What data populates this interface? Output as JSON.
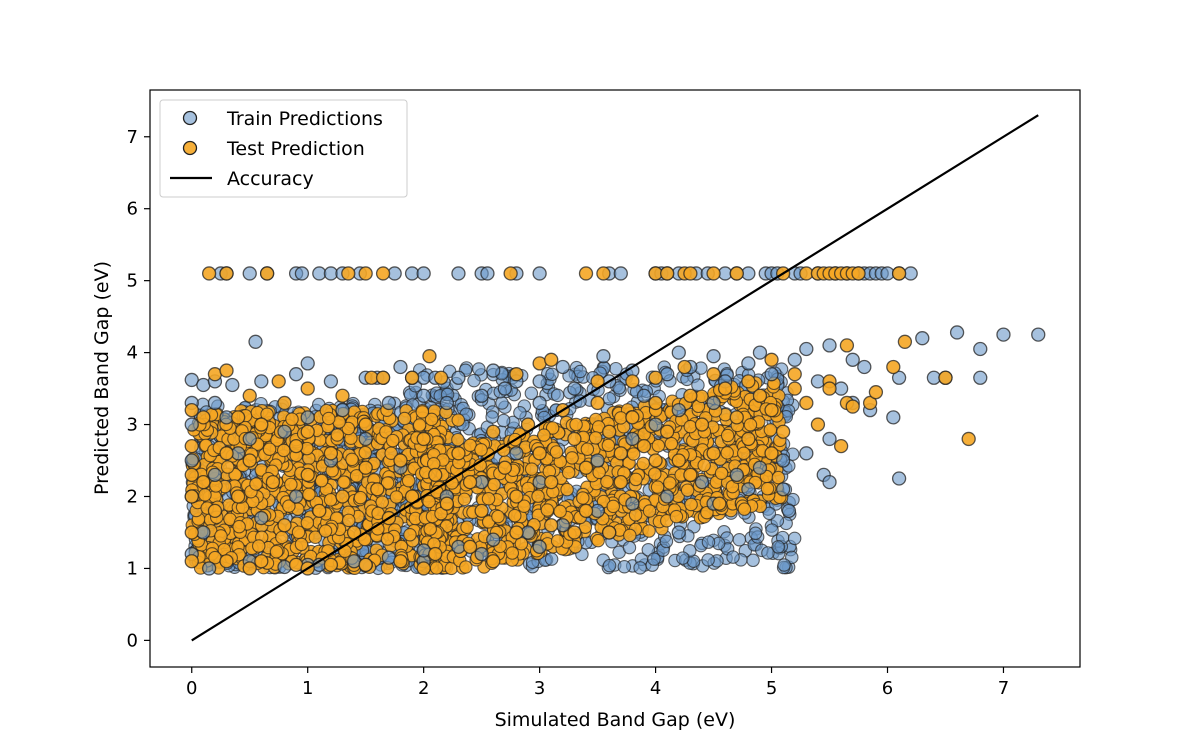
{
  "chart_data": {
    "type": "scatter",
    "title": "",
    "xlabel": "Simulated Band Gap (eV)",
    "ylabel": "Predicted Band Gap (eV)",
    "xlim": [
      -0.36,
      7.66
    ],
    "ylim": [
      -0.37,
      7.65
    ],
    "x_ticks": [
      0,
      1,
      2,
      3,
      4,
      5,
      6,
      7
    ],
    "y_ticks": [
      0,
      1,
      2,
      3,
      4,
      5,
      6,
      7
    ],
    "grid": false,
    "legend": "upper-left",
    "colors": {
      "train": "#6b98c8",
      "test": "#f5a623",
      "edge": "#222222",
      "line": "#000000"
    },
    "series": [
      {
        "name": "Train Predictions",
        "kind": "scatter",
        "points": [
          [
            0.0,
            3.62
          ],
          [
            0.1,
            3.55
          ],
          [
            0.2,
            3.6
          ],
          [
            0.35,
            3.55
          ],
          [
            0.55,
            4.15
          ],
          [
            0.6,
            3.6
          ],
          [
            0.9,
            3.7
          ],
          [
            1.0,
            3.85
          ],
          [
            1.2,
            3.6
          ],
          [
            1.5,
            3.65
          ],
          [
            1.6,
            3.65
          ],
          [
            1.65,
            3.65
          ],
          [
            1.8,
            3.8
          ],
          [
            1.9,
            3.65
          ],
          [
            2.0,
            3.65
          ],
          [
            2.1,
            3.65
          ],
          [
            2.3,
            3.65
          ],
          [
            2.6,
            3.75
          ],
          [
            2.8,
            3.6
          ],
          [
            3.0,
            3.6
          ],
          [
            3.2,
            3.8
          ],
          [
            3.55,
            3.95
          ],
          [
            3.8,
            3.75
          ],
          [
            4.2,
            4.0
          ],
          [
            4.5,
            3.95
          ],
          [
            4.9,
            4.0
          ],
          [
            5.3,
            4.05
          ],
          [
            5.5,
            4.1
          ],
          [
            5.7,
            3.9
          ],
          [
            5.8,
            3.8
          ],
          [
            6.05,
            3.1
          ],
          [
            6.1,
            2.25
          ],
          [
            6.1,
            3.65
          ],
          [
            6.3,
            4.2
          ],
          [
            6.4,
            3.65
          ],
          [
            6.5,
            3.65
          ],
          [
            6.6,
            4.28
          ],
          [
            6.8,
            3.65
          ],
          [
            6.8,
            4.05
          ],
          [
            7.0,
            4.25
          ],
          [
            7.3,
            4.25
          ],
          [
            5.45,
            2.3
          ],
          [
            5.5,
            2.2
          ],
          [
            5.15,
            1.8
          ],
          [
            5.1,
            2.1
          ],
          [
            4.8,
            2.1
          ],
          [
            4.5,
            1.9
          ],
          [
            4.2,
            1.5
          ],
          [
            3.6,
            1.5
          ],
          [
            3.0,
            1.3
          ],
          [
            2.5,
            1.2
          ],
          [
            2.0,
            1.1
          ],
          [
            1.5,
            1.05
          ],
          [
            1.0,
            1.05
          ],
          [
            0.5,
            1.1
          ],
          [
            0.0,
            1.2
          ],
          [
            0.0,
            2.0
          ],
          [
            0.0,
            2.5
          ],
          [
            0.0,
            3.0
          ],
          [
            0.0,
            3.3
          ],
          [
            0.1,
            1.5
          ],
          [
            0.2,
            2.3
          ],
          [
            0.3,
            3.1
          ],
          [
            0.5,
            2.8
          ],
          [
            0.8,
            2.9
          ],
          [
            1.0,
            3.1
          ],
          [
            1.3,
            3.2
          ],
          [
            1.7,
            3.3
          ],
          [
            2.0,
            3.4
          ],
          [
            2.2,
            3.3
          ],
          [
            2.5,
            3.4
          ],
          [
            2.7,
            3.5
          ],
          [
            3.0,
            3.3
          ],
          [
            3.3,
            3.5
          ],
          [
            3.6,
            3.6
          ],
          [
            3.9,
            3.4
          ],
          [
            4.1,
            3.7
          ],
          [
            4.3,
            3.8
          ],
          [
            4.6,
            3.6
          ],
          [
            4.8,
            3.85
          ],
          [
            5.0,
            3.7
          ],
          [
            5.2,
            3.9
          ],
          [
            5.4,
            3.6
          ],
          [
            5.6,
            3.5
          ],
          [
            5.7,
            3.3
          ],
          [
            5.85,
            3.2
          ],
          [
            5.5,
            2.8
          ],
          [
            5.3,
            2.6
          ],
          [
            5.1,
            2.5
          ],
          [
            4.9,
            2.4
          ],
          [
            4.7,
            2.3
          ],
          [
            4.4,
            2.2
          ],
          [
            4.1,
            2.0
          ],
          [
            3.8,
            1.9
          ],
          [
            3.5,
            1.8
          ],
          [
            3.2,
            1.6
          ],
          [
            2.9,
            1.5
          ],
          [
            2.6,
            1.4
          ],
          [
            2.3,
            1.3
          ],
          [
            2.0,
            1.25
          ],
          [
            1.7,
            1.15
          ],
          [
            1.4,
            1.1
          ],
          [
            1.1,
            1.05
          ],
          [
            0.8,
            1.02
          ],
          [
            3.5,
            2.5
          ],
          [
            3.8,
            2.8
          ],
          [
            4.0,
            3.0
          ],
          [
            4.2,
            3.2
          ],
          [
            4.5,
            3.3
          ],
          [
            3.0,
            2.2
          ],
          [
            2.8,
            2.6
          ],
          [
            2.5,
            2.2
          ],
          [
            2.2,
            2.0
          ],
          [
            1.8,
            2.4
          ],
          [
            1.5,
            2.8
          ],
          [
            1.2,
            2.5
          ],
          [
            0.9,
            2.0
          ],
          [
            0.6,
            1.7
          ],
          [
            0.4,
            2.6
          ],
          [
            0.2,
            3.3
          ],
          [
            0.15,
            1.0
          ],
          [
            0.25,
            5.1
          ],
          [
            0.3,
            5.1
          ],
          [
            0.5,
            5.1
          ],
          [
            0.65,
            5.1
          ],
          [
            0.9,
            5.1
          ],
          [
            0.95,
            5.1
          ],
          [
            1.1,
            5.1
          ],
          [
            1.2,
            5.1
          ],
          [
            1.3,
            5.1
          ],
          [
            1.45,
            5.1
          ],
          [
            1.75,
            5.1
          ],
          [
            1.9,
            5.1
          ],
          [
            2.0,
            5.1
          ],
          [
            2.3,
            5.1
          ],
          [
            2.5,
            5.1
          ],
          [
            2.55,
            5.1
          ],
          [
            2.8,
            5.1
          ],
          [
            3.0,
            5.1
          ],
          [
            3.6,
            5.1
          ],
          [
            3.7,
            5.1
          ],
          [
            4.0,
            5.1
          ],
          [
            4.05,
            5.1
          ],
          [
            4.1,
            5.1
          ],
          [
            4.2,
            5.1
          ],
          [
            4.35,
            5.1
          ],
          [
            4.45,
            5.1
          ],
          [
            4.6,
            5.1
          ],
          [
            4.7,
            5.1
          ],
          [
            4.8,
            5.1
          ],
          [
            4.95,
            5.1
          ],
          [
            5.0,
            5.1
          ],
          [
            5.05,
            5.1
          ],
          [
            5.2,
            5.1
          ],
          [
            5.25,
            5.1
          ],
          [
            5.4,
            5.1
          ],
          [
            5.55,
            5.1
          ],
          [
            5.65,
            5.1
          ],
          [
            5.75,
            5.1
          ],
          [
            5.8,
            5.1
          ],
          [
            5.85,
            5.1
          ],
          [
            5.9,
            5.1
          ],
          [
            5.95,
            5.1
          ],
          [
            6.0,
            5.1
          ],
          [
            6.1,
            5.1
          ],
          [
            6.2,
            5.1
          ]
        ]
      },
      {
        "name": "Test Prediction",
        "kind": "scatter",
        "points": [
          [
            0.0,
            3.2
          ],
          [
            0.1,
            3.1
          ],
          [
            0.2,
            3.7
          ],
          [
            0.3,
            3.75
          ],
          [
            0.5,
            3.4
          ],
          [
            0.75,
            3.6
          ],
          [
            0.8,
            3.3
          ],
          [
            1.0,
            3.5
          ],
          [
            1.3,
            3.4
          ],
          [
            1.55,
            3.65
          ],
          [
            1.65,
            3.65
          ],
          [
            1.9,
            3.65
          ],
          [
            2.05,
            3.95
          ],
          [
            2.15,
            3.65
          ],
          [
            2.8,
            3.7
          ],
          [
            3.0,
            3.85
          ],
          [
            3.1,
            3.9
          ],
          [
            3.5,
            3.6
          ],
          [
            3.8,
            3.6
          ],
          [
            4.0,
            3.65
          ],
          [
            4.25,
            3.8
          ],
          [
            4.5,
            3.7
          ],
          [
            4.8,
            3.6
          ],
          [
            5.0,
            3.9
          ],
          [
            5.2,
            3.7
          ],
          [
            5.5,
            3.6
          ],
          [
            5.65,
            4.1
          ],
          [
            5.65,
            3.3
          ],
          [
            5.7,
            3.25
          ],
          [
            5.85,
            3.3
          ],
          [
            5.9,
            3.45
          ],
          [
            6.05,
            3.8
          ],
          [
            6.15,
            4.15
          ],
          [
            6.5,
            3.65
          ],
          [
            6.7,
            2.8
          ],
          [
            5.6,
            2.7
          ],
          [
            5.0,
            2.6
          ],
          [
            4.55,
            1.9
          ],
          [
            4.3,
            2.3
          ],
          [
            4.0,
            2.5
          ],
          [
            3.7,
            2.2
          ],
          [
            3.4,
            1.8
          ],
          [
            3.1,
            1.6
          ],
          [
            2.8,
            1.5
          ],
          [
            2.4,
            1.3
          ],
          [
            2.1,
            1.2
          ],
          [
            1.8,
            1.1
          ],
          [
            1.5,
            1.05
          ],
          [
            1.2,
            1.05
          ],
          [
            0.9,
            1.05
          ],
          [
            0.6,
            1.1
          ],
          [
            0.3,
            1.1
          ],
          [
            0.0,
            1.1
          ],
          [
            0.0,
            1.5
          ],
          [
            0.0,
            2.0
          ],
          [
            0.0,
            2.3
          ],
          [
            0.0,
            2.7
          ],
          [
            0.1,
            2.2
          ],
          [
            0.2,
            1.8
          ],
          [
            0.3,
            2.6
          ],
          [
            0.4,
            2.0
          ],
          [
            0.5,
            2.5
          ],
          [
            0.6,
            3.0
          ],
          [
            0.7,
            2.2
          ],
          [
            0.8,
            1.6
          ],
          [
            0.9,
            2.7
          ],
          [
            1.0,
            2.3
          ],
          [
            1.1,
            1.8
          ],
          [
            1.2,
            2.6
          ],
          [
            1.3,
            2.0
          ],
          [
            1.4,
            1.5
          ],
          [
            1.5,
            2.4
          ],
          [
            1.6,
            2.1
          ],
          [
            1.7,
            1.7
          ],
          [
            1.8,
            2.5
          ],
          [
            1.9,
            2.0
          ],
          [
            2.0,
            2.8
          ],
          [
            2.1,
            2.3
          ],
          [
            2.2,
            1.9
          ],
          [
            2.3,
            2.6
          ],
          [
            2.4,
            2.2
          ],
          [
            2.5,
            1.8
          ],
          [
            2.6,
            2.9
          ],
          [
            2.7,
            2.4
          ],
          [
            2.8,
            2.0
          ],
          [
            2.9,
            3.0
          ],
          [
            3.0,
            2.6
          ],
          [
            3.1,
            2.2
          ],
          [
            3.2,
            3.2
          ],
          [
            3.3,
            2.8
          ],
          [
            3.4,
            2.4
          ],
          [
            3.5,
            3.3
          ],
          [
            3.6,
            2.9
          ],
          [
            3.7,
            2.6
          ],
          [
            3.8,
            3.1
          ],
          [
            3.9,
            2.7
          ],
          [
            4.0,
            3.3
          ],
          [
            4.1,
            2.9
          ],
          [
            4.2,
            2.5
          ],
          [
            4.3,
            3.4
          ],
          [
            4.4,
            3.0
          ],
          [
            4.5,
            2.6
          ],
          [
            4.6,
            3.5
          ],
          [
            4.7,
            3.1
          ],
          [
            4.8,
            2.8
          ],
          [
            4.9,
            3.4
          ],
          [
            5.0,
            3.2
          ],
          [
            5.1,
            2.9
          ],
          [
            5.2,
            3.5
          ],
          [
            5.3,
            3.3
          ],
          [
            5.4,
            3.0
          ],
          [
            5.5,
            3.5
          ],
          [
            3.3,
            1.5
          ],
          [
            3.6,
            1.5
          ],
          [
            2.6,
            1.1
          ],
          [
            2.0,
            1.0
          ],
          [
            1.0,
            1.0
          ],
          [
            0.5,
            1.0
          ],
          [
            1.5,
            3.0
          ],
          [
            1.0,
            2.9
          ],
          [
            0.4,
            3.1
          ],
          [
            0.15,
            5.1
          ],
          [
            0.3,
            5.1
          ],
          [
            0.65,
            5.1
          ],
          [
            1.35,
            5.1
          ],
          [
            1.5,
            5.1
          ],
          [
            1.65,
            5.1
          ],
          [
            2.75,
            5.1
          ],
          [
            3.4,
            5.1
          ],
          [
            3.55,
            5.1
          ],
          [
            4.0,
            5.1
          ],
          [
            4.1,
            5.1
          ],
          [
            4.25,
            5.1
          ],
          [
            4.3,
            5.1
          ],
          [
            4.5,
            5.1
          ],
          [
            4.7,
            5.1
          ],
          [
            5.1,
            5.1
          ],
          [
            5.3,
            5.1
          ],
          [
            5.4,
            5.1
          ],
          [
            5.45,
            5.1
          ],
          [
            5.5,
            5.1
          ],
          [
            5.55,
            5.1
          ],
          [
            5.6,
            5.1
          ],
          [
            5.65,
            5.1
          ],
          [
            5.7,
            5.1
          ],
          [
            5.75,
            5.1
          ],
          [
            6.1,
            5.1
          ]
        ]
      },
      {
        "name": "Accuracy",
        "kind": "line",
        "points": [
          [
            0.0,
            0.0
          ],
          [
            7.3,
            7.3
          ]
        ]
      }
    ]
  }
}
